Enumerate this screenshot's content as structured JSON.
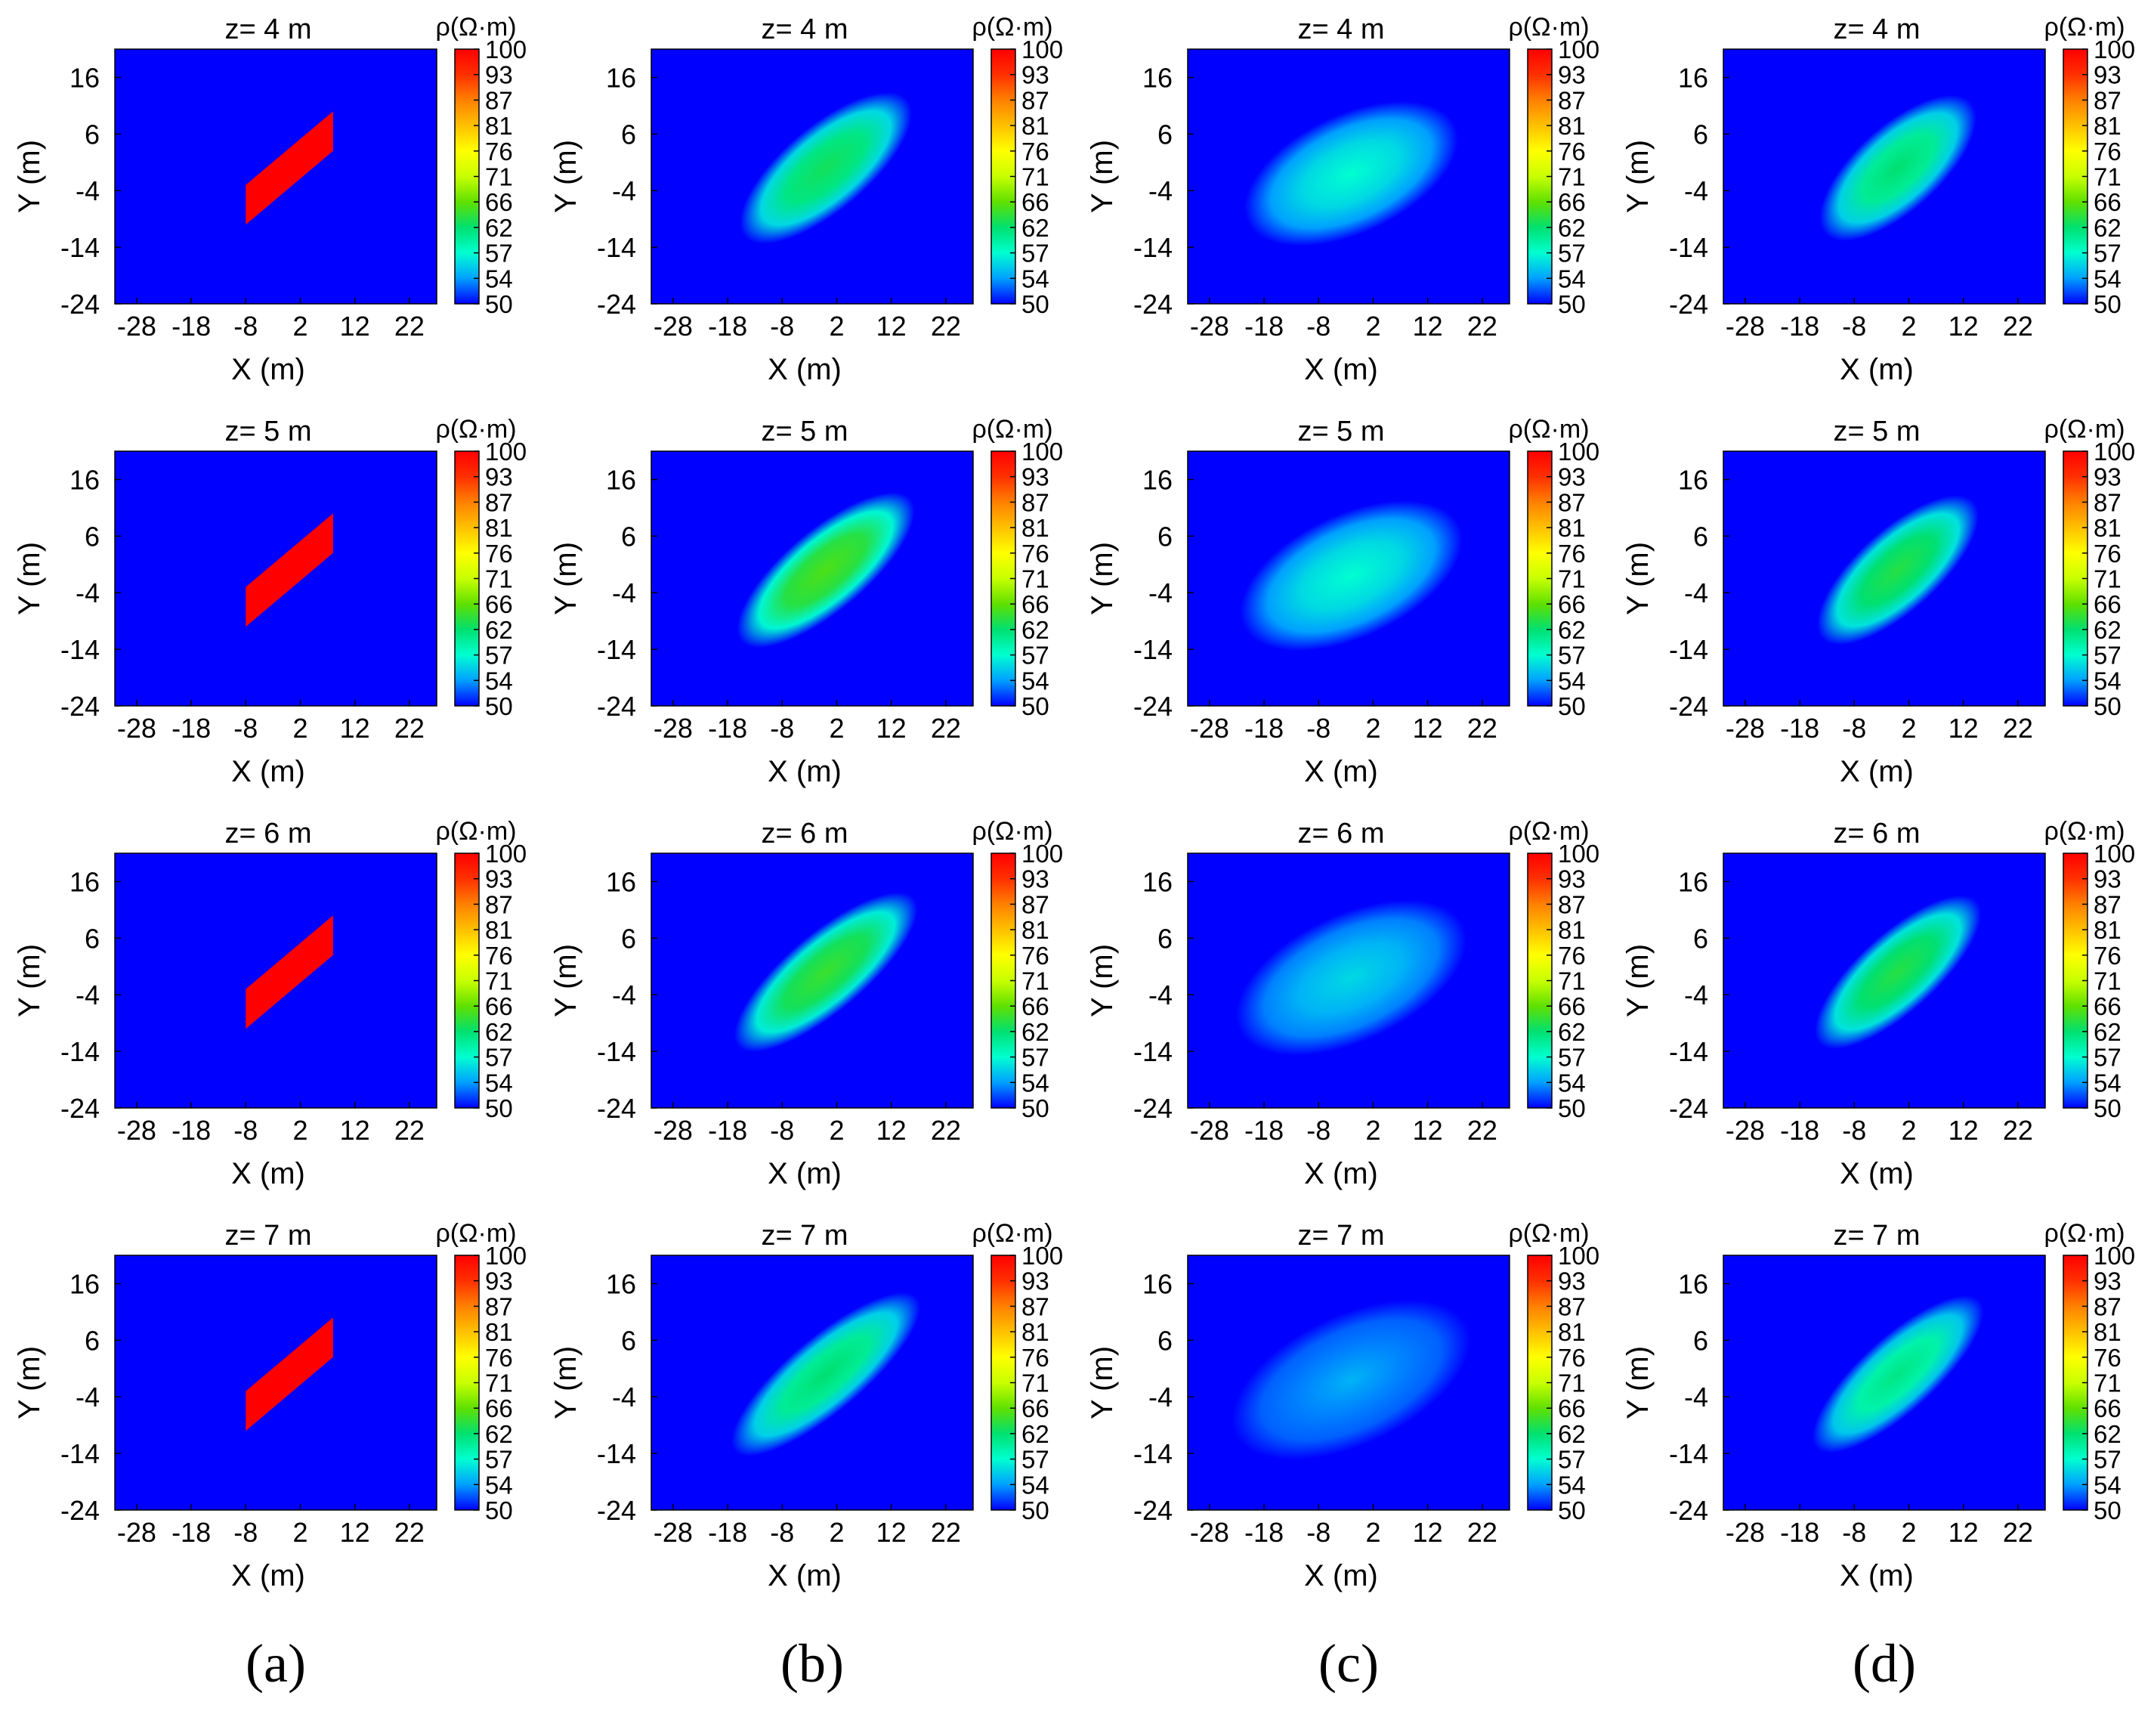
{
  "chart_data": {
    "type": "heatmap",
    "description_unit": "resistivity",
    "colorbar": {
      "label": "ρ(Ω·m)",
      "ticks": [
        100,
        93,
        87,
        81,
        76,
        71,
        66,
        62,
        57,
        54,
        50
      ],
      "range": [
        50,
        100
      ],
      "colors": [
        "#0000ff",
        "#00a0ff",
        "#00ffd0",
        "#00e070",
        "#60e000",
        "#c8ff00",
        "#ffff00",
        "#ffc000",
        "#ff8000",
        "#ff3000",
        "#ff0000"
      ]
    },
    "x_axis": {
      "label": "X (m)",
      "ticks": [
        -28,
        -18,
        -8,
        2,
        12,
        22
      ],
      "range": [
        -32,
        27
      ]
    },
    "y_axis": {
      "label": "Y (m)",
      "ticks": [
        16,
        6,
        -4,
        -14,
        -24
      ],
      "range": [
        -24,
        21
      ]
    },
    "depths": [
      {
        "title": "z= 4 m",
        "z": 4
      },
      {
        "title": "z= 5 m",
        "z": 5
      },
      {
        "title": "z= 6 m",
        "z": 6
      },
      {
        "title": "z= 7 m",
        "z": 7
      }
    ],
    "columns": [
      {
        "label": "(a)",
        "kind": "true_model",
        "background": 50,
        "anomaly_value": 100,
        "anomaly": {
          "x_range": [
            -8,
            8
          ],
          "y_bottom_at_left": [
            -10,
            -3
          ],
          "y_bottom_at_right": [
            3,
            10
          ]
        },
        "peaks": [
          100,
          100,
          100,
          100
        ]
      },
      {
        "label": "(b)",
        "kind": "inversion",
        "background": 50,
        "blob": {
          "center": [
            0,
            0
          ],
          "angle_deg": 40,
          "semi_major": 13,
          "semi_minor": 5
        },
        "peaks": [
          66,
          69,
          68,
          65
        ]
      },
      {
        "label": "(c)",
        "kind": "inversion",
        "background": 50,
        "blob": {
          "center": [
            -2,
            -1
          ],
          "angle_deg": 25,
          "semi_major": 14,
          "semi_minor": 7
        },
        "peaks": [
          60,
          60,
          58,
          56
        ]
      },
      {
        "label": "(d)",
        "kind": "inversion",
        "background": 50,
        "blob": {
          "center": [
            0,
            0
          ],
          "angle_deg": 42,
          "semi_major": 12,
          "semi_minor": 5
        },
        "peaks": [
          65,
          67,
          67,
          64
        ]
      }
    ]
  }
}
